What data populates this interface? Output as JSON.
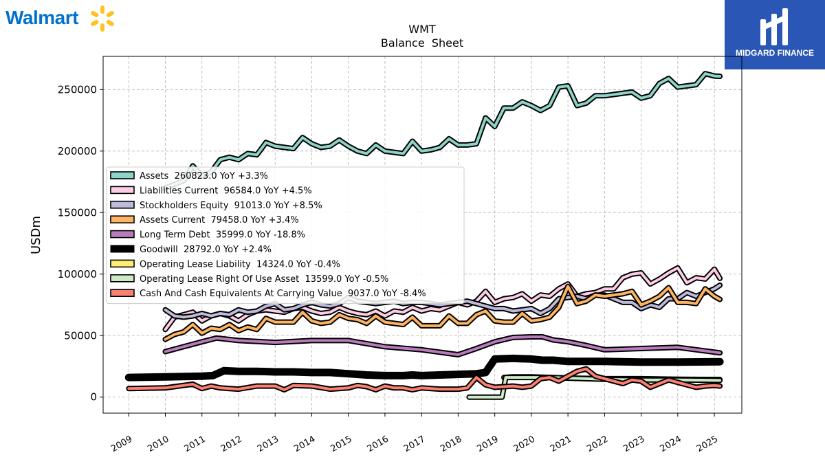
{
  "branding": {
    "left_logo_text": "Walmart",
    "right_logo_text": "MIDGARD FINANCE",
    "colors": {
      "walmart_blue": "#0071ce",
      "walmart_spark": "#ffc220",
      "midgard_bg": "#2a57b6"
    }
  },
  "chart_data": {
    "type": "line",
    "title": "WMT",
    "subtitle": "Balance  Sheet",
    "xlabel": "",
    "ylabel": "USDm",
    "ylim": [
      -13000,
      277000
    ],
    "xlim": [
      2008.3,
      2025.75
    ],
    "grid": true,
    "legend_placement": "center-left",
    "x_ticks": [
      "2009",
      "2010",
      "2011",
      "2012",
      "2013",
      "2014",
      "2015",
      "2016",
      "2017",
      "2018",
      "2019",
      "2020",
      "2021",
      "2022",
      "2023",
      "2024",
      "2025"
    ],
    "y_ticks": [
      "0",
      "50000",
      "100000",
      "150000",
      "200000",
      "250000"
    ],
    "series": [
      {
        "name": "Assets  260823.0 YoY +3.3%",
        "color": "#8dd3c7",
        "width": 4,
        "x": [
          2010.0,
          2010.5,
          2010.75,
          2011.0,
          2011.25,
          2011.5,
          2011.75,
          2012.0,
          2012.25,
          2012.5,
          2012.75,
          2013.0,
          2013.25,
          2013.5,
          2013.75,
          2014.0,
          2014.25,
          2014.5,
          2014.75,
          2015.0,
          2015.25,
          2015.5,
          2015.75,
          2016.0,
          2016.25,
          2016.5,
          2016.75,
          2017.0,
          2017.25,
          2017.5,
          2017.75,
          2018.0,
          2018.25,
          2018.5,
          2018.75,
          2019.0,
          2019.25,
          2019.5,
          2019.75,
          2020.0,
          2020.25,
          2020.5,
          2020.75,
          2021.0,
          2021.25,
          2021.5,
          2021.75,
          2022.0,
          2022.25,
          2022.5,
          2022.75,
          2023.0,
          2023.25,
          2023.5,
          2023.75,
          2024.0,
          2024.25,
          2024.5,
          2024.75,
          2025.0,
          2025.15
        ],
        "values": [
          170000,
          176000,
          188000,
          180000,
          183000,
          193000,
          195000,
          193000,
          198000,
          197000,
          207000,
          204000,
          203000,
          202000,
          211000,
          206000,
          203000,
          204000,
          209000,
          204000,
          200000,
          198000,
          205000,
          200000,
          199000,
          198000,
          208000,
          200000,
          201000,
          203000,
          210000,
          205000,
          205000,
          206000,
          227000,
          220000,
          235000,
          235000,
          240000,
          237000,
          233000,
          237000,
          252000,
          253000,
          237000,
          239000,
          245000,
          245000,
          246000,
          247000,
          248000,
          243000,
          245000,
          255000,
          259000,
          252000,
          253000,
          254000,
          263000,
          261000,
          260823
        ]
      },
      {
        "name": "Liabilities Current  96584.0 YoY +4.5%",
        "color": "#fccde5",
        "width": 4,
        "x": [
          2010.0,
          2010.25,
          2010.5,
          2010.75,
          2011.0,
          2011.25,
          2011.5,
          2011.75,
          2012.0,
          2012.25,
          2012.5,
          2012.75,
          2013.0,
          2013.25,
          2013.5,
          2013.75,
          2014.0,
          2014.25,
          2014.5,
          2014.75,
          2015.0,
          2015.25,
          2015.5,
          2015.75,
          2016.0,
          2016.25,
          2016.5,
          2016.75,
          2017.0,
          2017.25,
          2017.5,
          2017.75,
          2018.0,
          2018.25,
          2018.5,
          2018.75,
          2019.0,
          2019.25,
          2019.5,
          2019.75,
          2020.0,
          2020.25,
          2020.5,
          2020.75,
          2021.0,
          2021.25,
          2021.5,
          2021.75,
          2022.0,
          2022.25,
          2022.5,
          2022.75,
          2023.0,
          2023.25,
          2023.5,
          2023.75,
          2024.0,
          2024.25,
          2024.5,
          2024.75,
          2025.0,
          2025.15
        ],
        "values": [
          55000,
          65000,
          67000,
          69000,
          62000,
          66000,
          68000,
          66000,
          62000,
          67000,
          70000,
          71000,
          70000,
          69000,
          72000,
          73000,
          70000,
          68000,
          69000,
          73000,
          70000,
          68000,
          67000,
          70000,
          66000,
          70000,
          69000,
          73000,
          70000,
          72000,
          71000,
          74000,
          77000,
          75000,
          78000,
          86000,
          77000,
          80000,
          81000,
          84000,
          78000,
          83000,
          82000,
          88000,
          92000,
          82000,
          84000,
          85000,
          88000,
          88000,
          97000,
          100000,
          101000,
          92000,
          96000,
          101000,
          105000,
          93000,
          97000,
          96000,
          104000,
          96584
        ]
      },
      {
        "name": "Stockholders Equity  91013.0 YoY +8.5%",
        "color": "#bebada",
        "width": 4,
        "x": [
          2010.0,
          2010.25,
          2010.5,
          2010.75,
          2011.0,
          2011.25,
          2011.5,
          2011.75,
          2012.0,
          2012.25,
          2012.5,
          2012.75,
          2013.0,
          2013.25,
          2013.5,
          2013.75,
          2014.0,
          2014.25,
          2014.5,
          2014.75,
          2015.0,
          2015.25,
          2015.5,
          2015.75,
          2016.0,
          2016.25,
          2016.5,
          2016.75,
          2017.0,
          2017.25,
          2017.5,
          2017.75,
          2018.0,
          2018.25,
          2018.5,
          2018.75,
          2019.0,
          2019.25,
          2019.5,
          2019.75,
          2020.0,
          2020.25,
          2020.5,
          2020.75,
          2021.0,
          2021.25,
          2021.5,
          2021.75,
          2022.0,
          2022.25,
          2022.5,
          2022.75,
          2023.0,
          2023.25,
          2023.5,
          2023.75,
          2024.0,
          2024.25,
          2024.5,
          2024.75,
          2025.0,
          2025.15
        ],
        "values": [
          71000,
          66000,
          65000,
          66000,
          68000,
          66000,
          68000,
          67000,
          71000,
          69000,
          70000,
          74000,
          76000,
          71000,
          72000,
          75000,
          77000,
          75000,
          74000,
          76000,
          81000,
          78000,
          77000,
          76000,
          77000,
          78000,
          76000,
          77000,
          77000,
          76000,
          75000,
          76000,
          77000,
          78000,
          76000,
          74000,
          72000,
          72000,
          70000,
          71000,
          72000,
          68000,
          72000,
          80000,
          81000,
          82000,
          80000,
          83000,
          83000,
          80000,
          77000,
          77000,
          72000,
          75000,
          73000,
          80000,
          80000,
          85000,
          82000,
          85000,
          88000,
          91013
        ]
      },
      {
        "name": "Assets Current  79458.0 YoY +3.4%",
        "color": "#fdb462",
        "width": 4,
        "x": [
          2010.0,
          2010.25,
          2010.5,
          2010.75,
          2011.0,
          2011.25,
          2011.5,
          2011.75,
          2012.0,
          2012.25,
          2012.5,
          2012.75,
          2013.0,
          2013.25,
          2013.5,
          2013.75,
          2014.0,
          2014.25,
          2014.5,
          2014.75,
          2015.0,
          2015.25,
          2015.5,
          2015.75,
          2016.0,
          2016.25,
          2016.5,
          2016.75,
          2017.0,
          2017.25,
          2017.5,
          2017.75,
          2018.0,
          2018.25,
          2018.5,
          2018.75,
          2019.0,
          2019.25,
          2019.5,
          2019.75,
          2020.0,
          2020.25,
          2020.5,
          2020.75,
          2021.0,
          2021.25,
          2021.5,
          2021.75,
          2022.0,
          2022.25,
          2022.5,
          2022.75,
          2023.0,
          2023.25,
          2023.5,
          2023.75,
          2024.0,
          2024.25,
          2024.5,
          2024.75,
          2025.0,
          2025.15
        ],
        "values": [
          47000,
          51000,
          53000,
          59000,
          52000,
          56000,
          55000,
          59000,
          54000,
          57000,
          55000,
          64000,
          61000,
          61000,
          61000,
          69000,
          62000,
          60000,
          61000,
          67000,
          64000,
          63000,
          60000,
          66000,
          61000,
          60000,
          59000,
          65000,
          58000,
          58000,
          58000,
          66000,
          60000,
          60000,
          67000,
          70000,
          62000,
          61000,
          61000,
          68000,
          62000,
          63000,
          65000,
          73000,
          90000,
          76000,
          78000,
          83000,
          82000,
          83000,
          84000,
          86000,
          75000,
          78000,
          82000,
          89000,
          77000,
          77000,
          76000,
          88000,
          82000,
          79458
        ]
      },
      {
        "name": "Long Term Debt  35999.0 YoY -18.8%",
        "color": "#b87cbd",
        "width": 4,
        "x": [
          2010.0,
          2011.0,
          2011.4,
          2012.0,
          2013.0,
          2014.0,
          2015.0,
          2016.0,
          2017.0,
          2018.0,
          2018.5,
          2019.0,
          2019.5,
          2020.0,
          2020.3,
          2020.6,
          2021.0,
          2021.5,
          2022.0,
          2023.0,
          2024.0,
          2025.15
        ],
        "values": [
          37000,
          45000,
          48000,
          46000,
          44500,
          46000,
          46000,
          41000,
          38500,
          34500,
          39500,
          45000,
          48500,
          49000,
          49000,
          46500,
          45000,
          42000,
          38500,
          39500,
          40500,
          35999
        ]
      },
      {
        "name": "Goodwill  28792.0 YoY +2.4%",
        "color": "#000000",
        "width": 7,
        "x": [
          2009.0,
          2010.0,
          2011.0,
          2011.3,
          2011.6,
          2012.0,
          2012.5,
          2013.0,
          2013.5,
          2014.0,
          2014.5,
          2015.0,
          2015.5,
          2016.0,
          2016.5,
          2016.75,
          2017.0,
          2017.5,
          2018.0,
          2018.5,
          2018.75,
          2019.0,
          2019.5,
          2020.0,
          2020.3,
          2020.6,
          2021.0,
          2021.5,
          2022.0,
          2023.0,
          2024.0,
          2025.15
        ],
        "values": [
          16000,
          16500,
          17000,
          17500,
          21500,
          21000,
          21000,
          20500,
          20500,
          20000,
          20000,
          19000,
          18000,
          17500,
          17500,
          18000,
          17500,
          18000,
          18500,
          19000,
          20000,
          31000,
          31500,
          31000,
          30000,
          30000,
          29000,
          29000,
          29000,
          28500,
          28500,
          28792
        ]
      },
      {
        "name": "Operating Lease Liability  14324.0 YoY -0.4%",
        "color": "#ffed6f",
        "width": 4,
        "x": [
          2019.25,
          2019.5,
          2020.0,
          2020.5,
          2021.0,
          2022.0,
          2023.0,
          2024.0,
          2025.15
        ],
        "values": [
          16000,
          16500,
          16500,
          16000,
          15500,
          15000,
          15000,
          14500,
          14324
        ]
      },
      {
        "name": "Operating Lease Right Of Use Asset  13599.0 YoY -0.5%",
        "color": "#ccebc5",
        "width": 4,
        "x": [
          2018.3,
          2019.2,
          2019.3,
          2019.5,
          2020.0,
          2020.5,
          2021.0,
          2021.5,
          2022.0,
          2023.0,
          2024.0,
          2025.15
        ],
        "values": [
          0,
          0,
          16000,
          16000,
          16000,
          16000,
          15500,
          15000,
          14500,
          14000,
          14000,
          13599
        ]
      },
      {
        "name": "Cash And Cash Equivalents At Carrying Value  9037.0 YoY -8.4%",
        "color": "#fb8072",
        "width": 4,
        "x": [
          2009.0,
          2010.0,
          2010.5,
          2010.75,
          2011.0,
          2011.25,
          2011.5,
          2011.75,
          2012.0,
          2012.5,
          2013.0,
          2013.25,
          2013.5,
          2014.0,
          2014.5,
          2015.0,
          2015.25,
          2015.5,
          2015.75,
          2016.0,
          2016.25,
          2016.5,
          2016.75,
          2017.0,
          2017.5,
          2018.0,
          2018.25,
          2018.5,
          2018.75,
          2019.0,
          2019.5,
          2019.75,
          2020.0,
          2020.25,
          2020.5,
          2020.75,
          2021.0,
          2021.25,
          2021.5,
          2021.75,
          2022.0,
          2022.5,
          2022.75,
          2023.0,
          2023.25,
          2023.5,
          2023.75,
          2024.0,
          2024.5,
          2024.75,
          2025.0,
          2025.15
        ],
        "values": [
          7000,
          7500,
          9500,
          10500,
          7000,
          9000,
          7500,
          7000,
          6500,
          9000,
          9000,
          6000,
          9500,
          9000,
          6500,
          7500,
          9500,
          8500,
          6000,
          9000,
          7500,
          7500,
          6000,
          7500,
          6500,
          6500,
          7500,
          16000,
          10000,
          8000,
          9000,
          8000,
          9000,
          15000,
          16000,
          13000,
          17000,
          21000,
          23000,
          17000,
          15000,
          11000,
          14000,
          13000,
          8000,
          11000,
          14000,
          12000,
          8000,
          9000,
          9500,
          9037
        ]
      }
    ]
  }
}
